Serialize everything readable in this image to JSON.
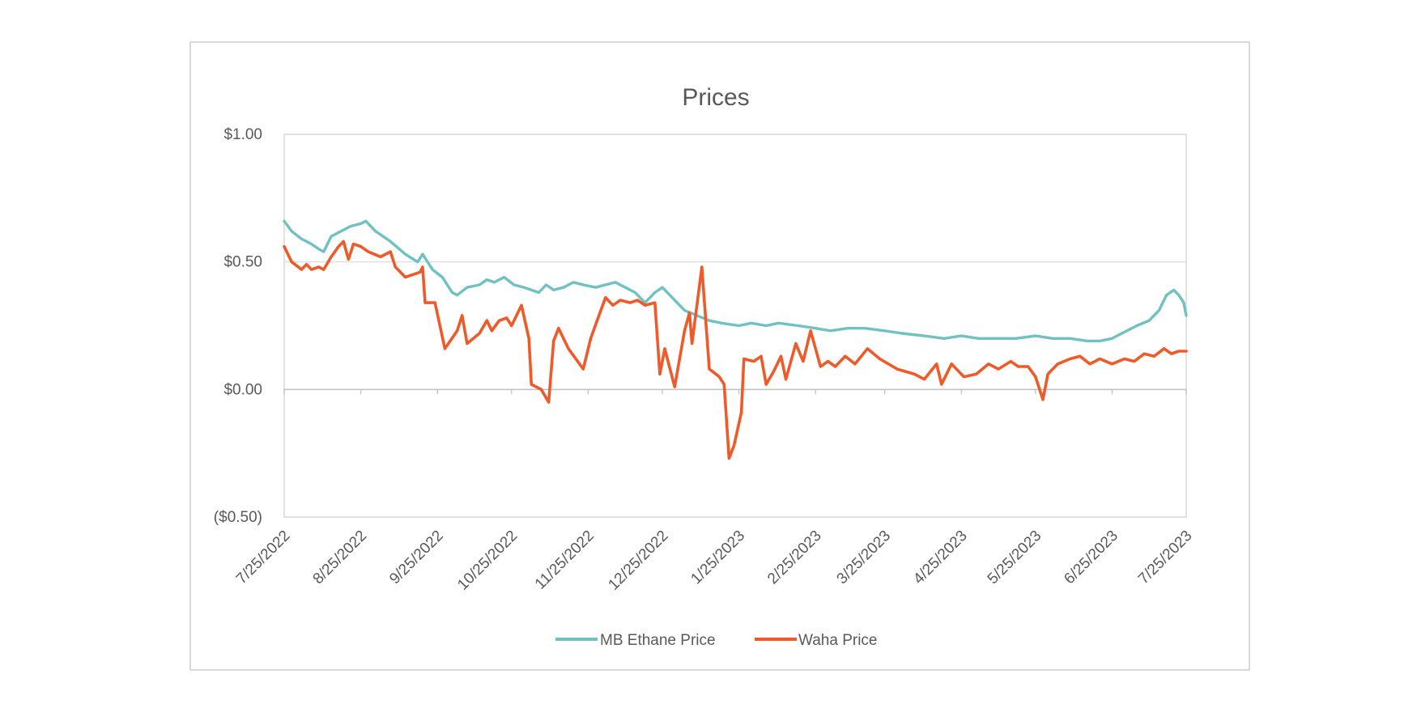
{
  "chart_data": {
    "type": "line",
    "title": "Prices",
    "xlabel": "",
    "ylabel": "",
    "ylim": [
      -0.5,
      1.0
    ],
    "y_ticks": [
      1.0,
      0.5,
      0.0,
      -0.5
    ],
    "y_tick_labels": [
      "$1.00",
      "$0.50",
      "$0.00",
      "($0.50)"
    ],
    "x_range": [
      "2022-07-25",
      "2023-07-25"
    ],
    "x_tick_labels": [
      "7/25/2022",
      "8/25/2022",
      "9/25/2022",
      "10/25/2022",
      "11/25/2022",
      "12/25/2022",
      "1/25/2023",
      "2/25/2023",
      "3/25/2023",
      "4/25/2023",
      "5/25/2023",
      "6/25/2023",
      "7/25/2023"
    ],
    "x_ticks": [
      "2022-07-25",
      "2022-08-25",
      "2022-09-25",
      "2022-10-25",
      "2022-11-25",
      "2022-12-25",
      "2023-01-25",
      "2023-02-25",
      "2023-03-25",
      "2023-04-25",
      "2023-05-25",
      "2023-06-25",
      "2023-07-25"
    ],
    "grid": true,
    "legend_position": "bottom",
    "series": [
      {
        "name": "MB Ethane Price",
        "color": "#70c1c1",
        "points": [
          [
            "2022-07-25",
            0.66
          ],
          [
            "2022-07-28",
            0.62
          ],
          [
            "2022-08-01",
            0.59
          ],
          [
            "2022-08-05",
            0.57
          ],
          [
            "2022-08-08",
            0.55
          ],
          [
            "2022-08-10",
            0.54
          ],
          [
            "2022-08-13",
            0.6
          ],
          [
            "2022-08-17",
            0.62
          ],
          [
            "2022-08-21",
            0.64
          ],
          [
            "2022-08-25",
            0.65
          ],
          [
            "2022-08-27",
            0.66
          ],
          [
            "2022-08-31",
            0.62
          ],
          [
            "2022-09-06",
            0.58
          ],
          [
            "2022-09-12",
            0.53
          ],
          [
            "2022-09-17",
            0.5
          ],
          [
            "2022-09-19",
            0.53
          ],
          [
            "2022-09-23",
            0.47
          ],
          [
            "2022-09-27",
            0.44
          ],
          [
            "2022-10-01",
            0.38
          ],
          [
            "2022-10-03",
            0.37
          ],
          [
            "2022-10-07",
            0.4
          ],
          [
            "2022-10-12",
            0.41
          ],
          [
            "2022-10-15",
            0.43
          ],
          [
            "2022-10-18",
            0.42
          ],
          [
            "2022-10-22",
            0.44
          ],
          [
            "2022-10-26",
            0.41
          ],
          [
            "2022-10-30",
            0.4
          ],
          [
            "2022-11-02",
            0.39
          ],
          [
            "2022-11-05",
            0.38
          ],
          [
            "2022-11-08",
            0.41
          ],
          [
            "2022-11-11",
            0.39
          ],
          [
            "2022-11-15",
            0.4
          ],
          [
            "2022-11-19",
            0.42
          ],
          [
            "2022-11-23",
            0.41
          ],
          [
            "2022-11-28",
            0.4
          ],
          [
            "2022-12-02",
            0.41
          ],
          [
            "2022-12-06",
            0.42
          ],
          [
            "2022-12-10",
            0.4
          ],
          [
            "2022-12-14",
            0.38
          ],
          [
            "2022-12-18",
            0.34
          ],
          [
            "2022-12-22",
            0.38
          ],
          [
            "2022-12-25",
            0.4
          ],
          [
            "2022-12-29",
            0.36
          ],
          [
            "2023-01-03",
            0.31
          ],
          [
            "2023-01-08",
            0.29
          ],
          [
            "2023-01-13",
            0.27
          ],
          [
            "2023-01-18",
            0.26
          ],
          [
            "2023-01-25",
            0.25
          ],
          [
            "2023-01-30",
            0.26
          ],
          [
            "2023-02-05",
            0.25
          ],
          [
            "2023-02-10",
            0.26
          ],
          [
            "2023-02-18",
            0.25
          ],
          [
            "2023-02-25",
            0.24
          ],
          [
            "2023-03-03",
            0.23
          ],
          [
            "2023-03-10",
            0.24
          ],
          [
            "2023-03-17",
            0.24
          ],
          [
            "2023-03-25",
            0.23
          ],
          [
            "2023-04-01",
            0.22
          ],
          [
            "2023-04-10",
            0.21
          ],
          [
            "2023-04-18",
            0.2
          ],
          [
            "2023-04-25",
            0.21
          ],
          [
            "2023-05-02",
            0.2
          ],
          [
            "2023-05-10",
            0.2
          ],
          [
            "2023-05-17",
            0.2
          ],
          [
            "2023-05-25",
            0.21
          ],
          [
            "2023-06-01",
            0.2
          ],
          [
            "2023-06-08",
            0.2
          ],
          [
            "2023-06-15",
            0.19
          ],
          [
            "2023-06-20",
            0.19
          ],
          [
            "2023-06-25",
            0.2
          ],
          [
            "2023-07-01",
            0.23
          ],
          [
            "2023-07-05",
            0.25
          ],
          [
            "2023-07-10",
            0.27
          ],
          [
            "2023-07-14",
            0.31
          ],
          [
            "2023-07-17",
            0.37
          ],
          [
            "2023-07-20",
            0.39
          ],
          [
            "2023-07-22",
            0.37
          ],
          [
            "2023-07-24",
            0.34
          ],
          [
            "2023-07-25",
            0.29
          ]
        ]
      },
      {
        "name": "Waha Price",
        "color": "#ef5a2a",
        "points": [
          [
            "2022-07-25",
            0.56
          ],
          [
            "2022-07-28",
            0.5
          ],
          [
            "2022-08-01",
            0.47
          ],
          [
            "2022-08-03",
            0.49
          ],
          [
            "2022-08-05",
            0.47
          ],
          [
            "2022-08-08",
            0.48
          ],
          [
            "2022-08-10",
            0.47
          ],
          [
            "2022-08-13",
            0.52
          ],
          [
            "2022-08-16",
            0.56
          ],
          [
            "2022-08-18",
            0.58
          ],
          [
            "2022-08-20",
            0.51
          ],
          [
            "2022-08-22",
            0.57
          ],
          [
            "2022-08-25",
            0.56
          ],
          [
            "2022-08-28",
            0.54
          ],
          [
            "2022-09-02",
            0.52
          ],
          [
            "2022-09-06",
            0.54
          ],
          [
            "2022-09-08",
            0.48
          ],
          [
            "2022-09-12",
            0.44
          ],
          [
            "2022-09-15",
            0.45
          ],
          [
            "2022-09-18",
            0.46
          ],
          [
            "2022-09-19",
            0.48
          ],
          [
            "2022-09-20",
            0.34
          ],
          [
            "2022-09-24",
            0.34
          ],
          [
            "2022-09-28",
            0.16
          ],
          [
            "2022-10-03",
            0.23
          ],
          [
            "2022-10-05",
            0.29
          ],
          [
            "2022-10-07",
            0.18
          ],
          [
            "2022-10-12",
            0.22
          ],
          [
            "2022-10-15",
            0.27
          ],
          [
            "2022-10-17",
            0.23
          ],
          [
            "2022-10-20",
            0.27
          ],
          [
            "2022-10-23",
            0.28
          ],
          [
            "2022-10-25",
            0.25
          ],
          [
            "2022-10-29",
            0.33
          ],
          [
            "2022-11-01",
            0.2
          ],
          [
            "2022-11-02",
            0.02
          ],
          [
            "2022-11-06",
            0.0
          ],
          [
            "2022-11-09",
            -0.05
          ],
          [
            "2022-11-11",
            0.19
          ],
          [
            "2022-11-13",
            0.24
          ],
          [
            "2022-11-17",
            0.16
          ],
          [
            "2022-11-23",
            0.08
          ],
          [
            "2022-11-26",
            0.2
          ],
          [
            "2022-11-29",
            0.28
          ],
          [
            "2022-12-02",
            0.36
          ],
          [
            "2022-12-05",
            0.33
          ],
          [
            "2022-12-08",
            0.35
          ],
          [
            "2022-12-12",
            0.34
          ],
          [
            "2022-12-15",
            0.35
          ],
          [
            "2022-12-18",
            0.33
          ],
          [
            "2022-12-22",
            0.34
          ],
          [
            "2022-12-24",
            0.06
          ],
          [
            "2022-12-26",
            0.16
          ],
          [
            "2022-12-30",
            0.01
          ],
          [
            "2023-01-03",
            0.23
          ],
          [
            "2023-01-05",
            0.3
          ],
          [
            "2023-01-06",
            0.18
          ],
          [
            "2023-01-08",
            0.33
          ],
          [
            "2023-01-10",
            0.48
          ],
          [
            "2023-01-13",
            0.08
          ],
          [
            "2023-01-17",
            0.05
          ],
          [
            "2023-01-19",
            0.02
          ],
          [
            "2023-01-21",
            -0.27
          ],
          [
            "2023-01-23",
            -0.22
          ],
          [
            "2023-01-26",
            -0.09
          ],
          [
            "2023-01-27",
            0.12
          ],
          [
            "2023-01-31",
            0.11
          ],
          [
            "2023-02-03",
            0.13
          ],
          [
            "2023-02-05",
            0.02
          ],
          [
            "2023-02-08",
            0.07
          ],
          [
            "2023-02-11",
            0.13
          ],
          [
            "2023-02-13",
            0.04
          ],
          [
            "2023-02-17",
            0.18
          ],
          [
            "2023-02-20",
            0.11
          ],
          [
            "2023-02-23",
            0.23
          ],
          [
            "2023-02-27",
            0.09
          ],
          [
            "2023-03-02",
            0.11
          ],
          [
            "2023-03-05",
            0.09
          ],
          [
            "2023-03-09",
            0.13
          ],
          [
            "2023-03-13",
            0.1
          ],
          [
            "2023-03-18",
            0.16
          ],
          [
            "2023-03-23",
            0.12
          ],
          [
            "2023-03-30",
            0.08
          ],
          [
            "2023-04-06",
            0.06
          ],
          [
            "2023-04-10",
            0.04
          ],
          [
            "2023-04-15",
            0.1
          ],
          [
            "2023-04-17",
            0.02
          ],
          [
            "2023-04-21",
            0.1
          ],
          [
            "2023-04-26",
            0.05
          ],
          [
            "2023-05-01",
            0.06
          ],
          [
            "2023-05-06",
            0.1
          ],
          [
            "2023-05-10",
            0.08
          ],
          [
            "2023-05-15",
            0.11
          ],
          [
            "2023-05-18",
            0.09
          ],
          [
            "2023-05-22",
            0.09
          ],
          [
            "2023-05-25",
            0.05
          ],
          [
            "2023-05-28",
            -0.04
          ],
          [
            "2023-05-30",
            0.06
          ],
          [
            "2023-06-03",
            0.1
          ],
          [
            "2023-06-08",
            0.12
          ],
          [
            "2023-06-12",
            0.13
          ],
          [
            "2023-06-16",
            0.1
          ],
          [
            "2023-06-20",
            0.12
          ],
          [
            "2023-06-25",
            0.1
          ],
          [
            "2023-06-30",
            0.12
          ],
          [
            "2023-07-04",
            0.11
          ],
          [
            "2023-07-08",
            0.14
          ],
          [
            "2023-07-12",
            0.13
          ],
          [
            "2023-07-16",
            0.16
          ],
          [
            "2023-07-19",
            0.14
          ],
          [
            "2023-07-22",
            0.15
          ],
          [
            "2023-07-25",
            0.15
          ]
        ]
      }
    ]
  }
}
